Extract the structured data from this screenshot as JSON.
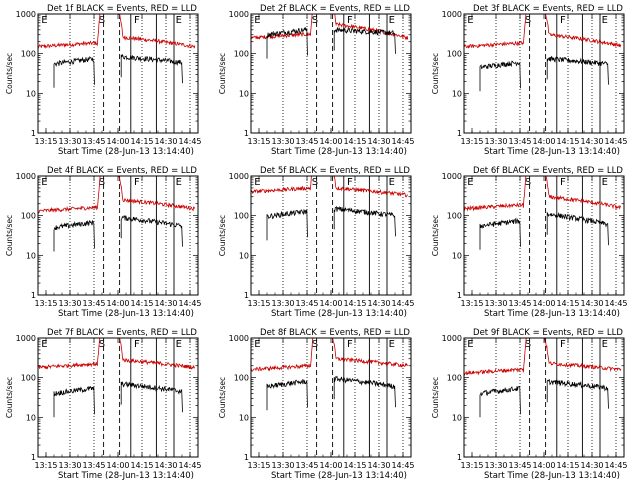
{
  "chart_data": [
    {
      "type": "line",
      "title": "Det 1f BLACK = Events, RED = LLD",
      "xlabel": "Start Time (28-Jun-13 13:14:40)",
      "ylabel": "Counts/sec",
      "yscale": "log",
      "ylim": [
        1,
        1000
      ],
      "xlim_min": [
        0,
        95
      ],
      "x_ticks": [
        "13:15",
        "13:30",
        "13:45",
        "14:00",
        "14:15",
        "14:30",
        "14:45"
      ],
      "y_ticks": [
        "1",
        "10",
        "100",
        "1000"
      ],
      "region_letters": [
        "E",
        "S",
        "F",
        "E"
      ],
      "series": [
        {
          "color": "#cc0000",
          "level_before": 150,
          "level_after": 260,
          "tail_after": 150
        },
        {
          "color": "#000000",
          "level_before": 55,
          "level_after": 85,
          "tail_after": 60
        }
      ]
    },
    {
      "type": "line",
      "title": "Det 2f BLACK = Events, RED = LLD",
      "xlabel": "Start Time (28-Jun-13 13:14:40)",
      "ylabel": "Counts/sec",
      "yscale": "log",
      "ylim": [
        1,
        1000
      ],
      "x_ticks": [
        "13:15",
        "13:30",
        "13:45",
        "14:00",
        "14:15",
        "14:30",
        "14:45"
      ],
      "y_ticks": [
        "1",
        "10",
        "100",
        "1000"
      ],
      "region_letters": [
        "E",
        "S",
        "F",
        "E"
      ],
      "series": [
        {
          "color": "#cc0000",
          "level_before": 250,
          "level_after": 550,
          "tail_after": 250
        },
        {
          "color": "#000000",
          "level_before": 300,
          "level_after": 400,
          "tail_after": 330
        }
      ]
    },
    {
      "type": "line",
      "title": "Det 3f BLACK = Events, RED = LLD",
      "xlabel": "Start Time (28-Jun-13 13:14:40)",
      "ylabel": "Counts/sec",
      "yscale": "log",
      "ylim": [
        1,
        1000
      ],
      "x_ticks": [
        "13:15",
        "13:30",
        "13:45",
        "14:00",
        "14:15",
        "14:30",
        "14:45"
      ],
      "y_ticks": [
        "1",
        "10",
        "100",
        "1000"
      ],
      "region_letters": [
        "E",
        "S",
        "F",
        "E"
      ],
      "series": [
        {
          "color": "#cc0000",
          "level_before": 150,
          "level_after": 300,
          "tail_after": 160
        },
        {
          "color": "#000000",
          "level_before": 45,
          "level_after": 75,
          "tail_after": 55
        }
      ]
    },
    {
      "type": "line",
      "title": "Det 4f BLACK = Events, RED = LLD",
      "xlabel": "Start Time (28-Jun-13 13:14:40)",
      "ylabel": "Counts/sec",
      "yscale": "log",
      "ylim": [
        1,
        1000
      ],
      "x_ticks": [
        "13:15",
        "13:30",
        "13:45",
        "14:00",
        "14:15",
        "14:30",
        "14:45"
      ],
      "y_ticks": [
        "1",
        "10",
        "100",
        "1000"
      ],
      "region_letters": [
        "E",
        "S",
        "F",
        "E"
      ],
      "series": [
        {
          "color": "#cc0000",
          "level_before": 130,
          "level_after": 250,
          "tail_after": 150
        },
        {
          "color": "#000000",
          "level_before": 50,
          "level_after": 90,
          "tail_after": 55
        }
      ]
    },
    {
      "type": "line",
      "title": "Det 5f BLACK = Events, RED = LLD",
      "xlabel": "Start Time (28-Jun-13 13:14:40)",
      "ylabel": "Counts/sec",
      "yscale": "log",
      "ylim": [
        1,
        1000
      ],
      "x_ticks": [
        "13:15",
        "13:30",
        "13:45",
        "14:00",
        "14:15",
        "14:30",
        "14:45"
      ],
      "y_ticks": [
        "1",
        "10",
        "100",
        "1000"
      ],
      "region_letters": [
        "E",
        "S",
        "F",
        "E"
      ],
      "series": [
        {
          "color": "#cc0000",
          "level_before": 400,
          "level_after": 500,
          "tail_after": 330
        },
        {
          "color": "#000000",
          "level_before": 95,
          "level_after": 150,
          "tail_after": 100
        }
      ]
    },
    {
      "type": "line",
      "title": "Det 6f BLACK = Events, RED = LLD",
      "xlabel": "Start Time (28-Jun-13 13:14:40)",
      "ylabel": "Counts/sec",
      "yscale": "log",
      "ylim": [
        1,
        1000
      ],
      "x_ticks": [
        "13:15",
        "13:30",
        "13:45",
        "14:00",
        "14:15",
        "14:30",
        "14:45"
      ],
      "y_ticks": [
        "1",
        "10",
        "100",
        "1000"
      ],
      "region_letters": [
        "E",
        "S",
        "F",
        "E"
      ],
      "series": [
        {
          "color": "#cc0000",
          "level_before": 150,
          "level_after": 300,
          "tail_after": 160
        },
        {
          "color": "#000000",
          "level_before": 55,
          "level_after": 110,
          "tail_after": 60
        }
      ]
    },
    {
      "type": "line",
      "title": "Det 7f BLACK = Events, RED = LLD",
      "xlabel": "Start Time (28-Jun-13 13:14:40)",
      "ylabel": "Counts/sec",
      "yscale": "log",
      "ylim": [
        1,
        1000
      ],
      "x_ticks": [
        "13:15",
        "13:30",
        "13:45",
        "14:00",
        "14:15",
        "14:30",
        "14:45"
      ],
      "y_ticks": [
        "1",
        "10",
        "100",
        "1000"
      ],
      "region_letters": [
        "E",
        "S",
        "F",
        "E"
      ],
      "series": [
        {
          "color": "#cc0000",
          "level_before": 180,
          "level_after": 280,
          "tail_after": 180
        },
        {
          "color": "#000000",
          "level_before": 40,
          "level_after": 70,
          "tail_after": 45
        }
      ]
    },
    {
      "type": "line",
      "title": "Det 8f BLACK = Events, RED = LLD",
      "xlabel": "Start Time (28-Jun-13 13:14:40)",
      "ylabel": "Counts/sec",
      "yscale": "log",
      "ylim": [
        1,
        1000
      ],
      "x_ticks": [
        "13:15",
        "13:30",
        "13:45",
        "14:00",
        "14:15",
        "14:30",
        "14:45"
      ],
      "y_ticks": [
        "1",
        "10",
        "100",
        "1000"
      ],
      "region_letters": [
        "E",
        "S",
        "F",
        "E"
      ],
      "series": [
        {
          "color": "#cc0000",
          "level_before": 160,
          "level_after": 300,
          "tail_after": 200
        },
        {
          "color": "#000000",
          "level_before": 60,
          "level_after": 95,
          "tail_after": 60
        }
      ]
    },
    {
      "type": "line",
      "title": "Det 9f BLACK = Events, RED = LLD",
      "xlabel": "Start Time (28-Jun-13 13:14:40)",
      "ylabel": "Counts/sec",
      "yscale": "log",
      "ylim": [
        1,
        1000
      ],
      "x_ticks": [
        "13:15",
        "13:30",
        "13:45",
        "14:00",
        "14:15",
        "14:30",
        "14:45"
      ],
      "y_ticks": [
        "1",
        "10",
        "100",
        "1000"
      ],
      "region_letters": [
        "E",
        "S",
        "F",
        "E"
      ],
      "series": [
        {
          "color": "#cc0000",
          "level_before": 130,
          "level_after": 230,
          "tail_after": 160
        },
        {
          "color": "#000000",
          "level_before": 40,
          "level_after": 80,
          "tail_after": 55
        }
      ]
    }
  ]
}
